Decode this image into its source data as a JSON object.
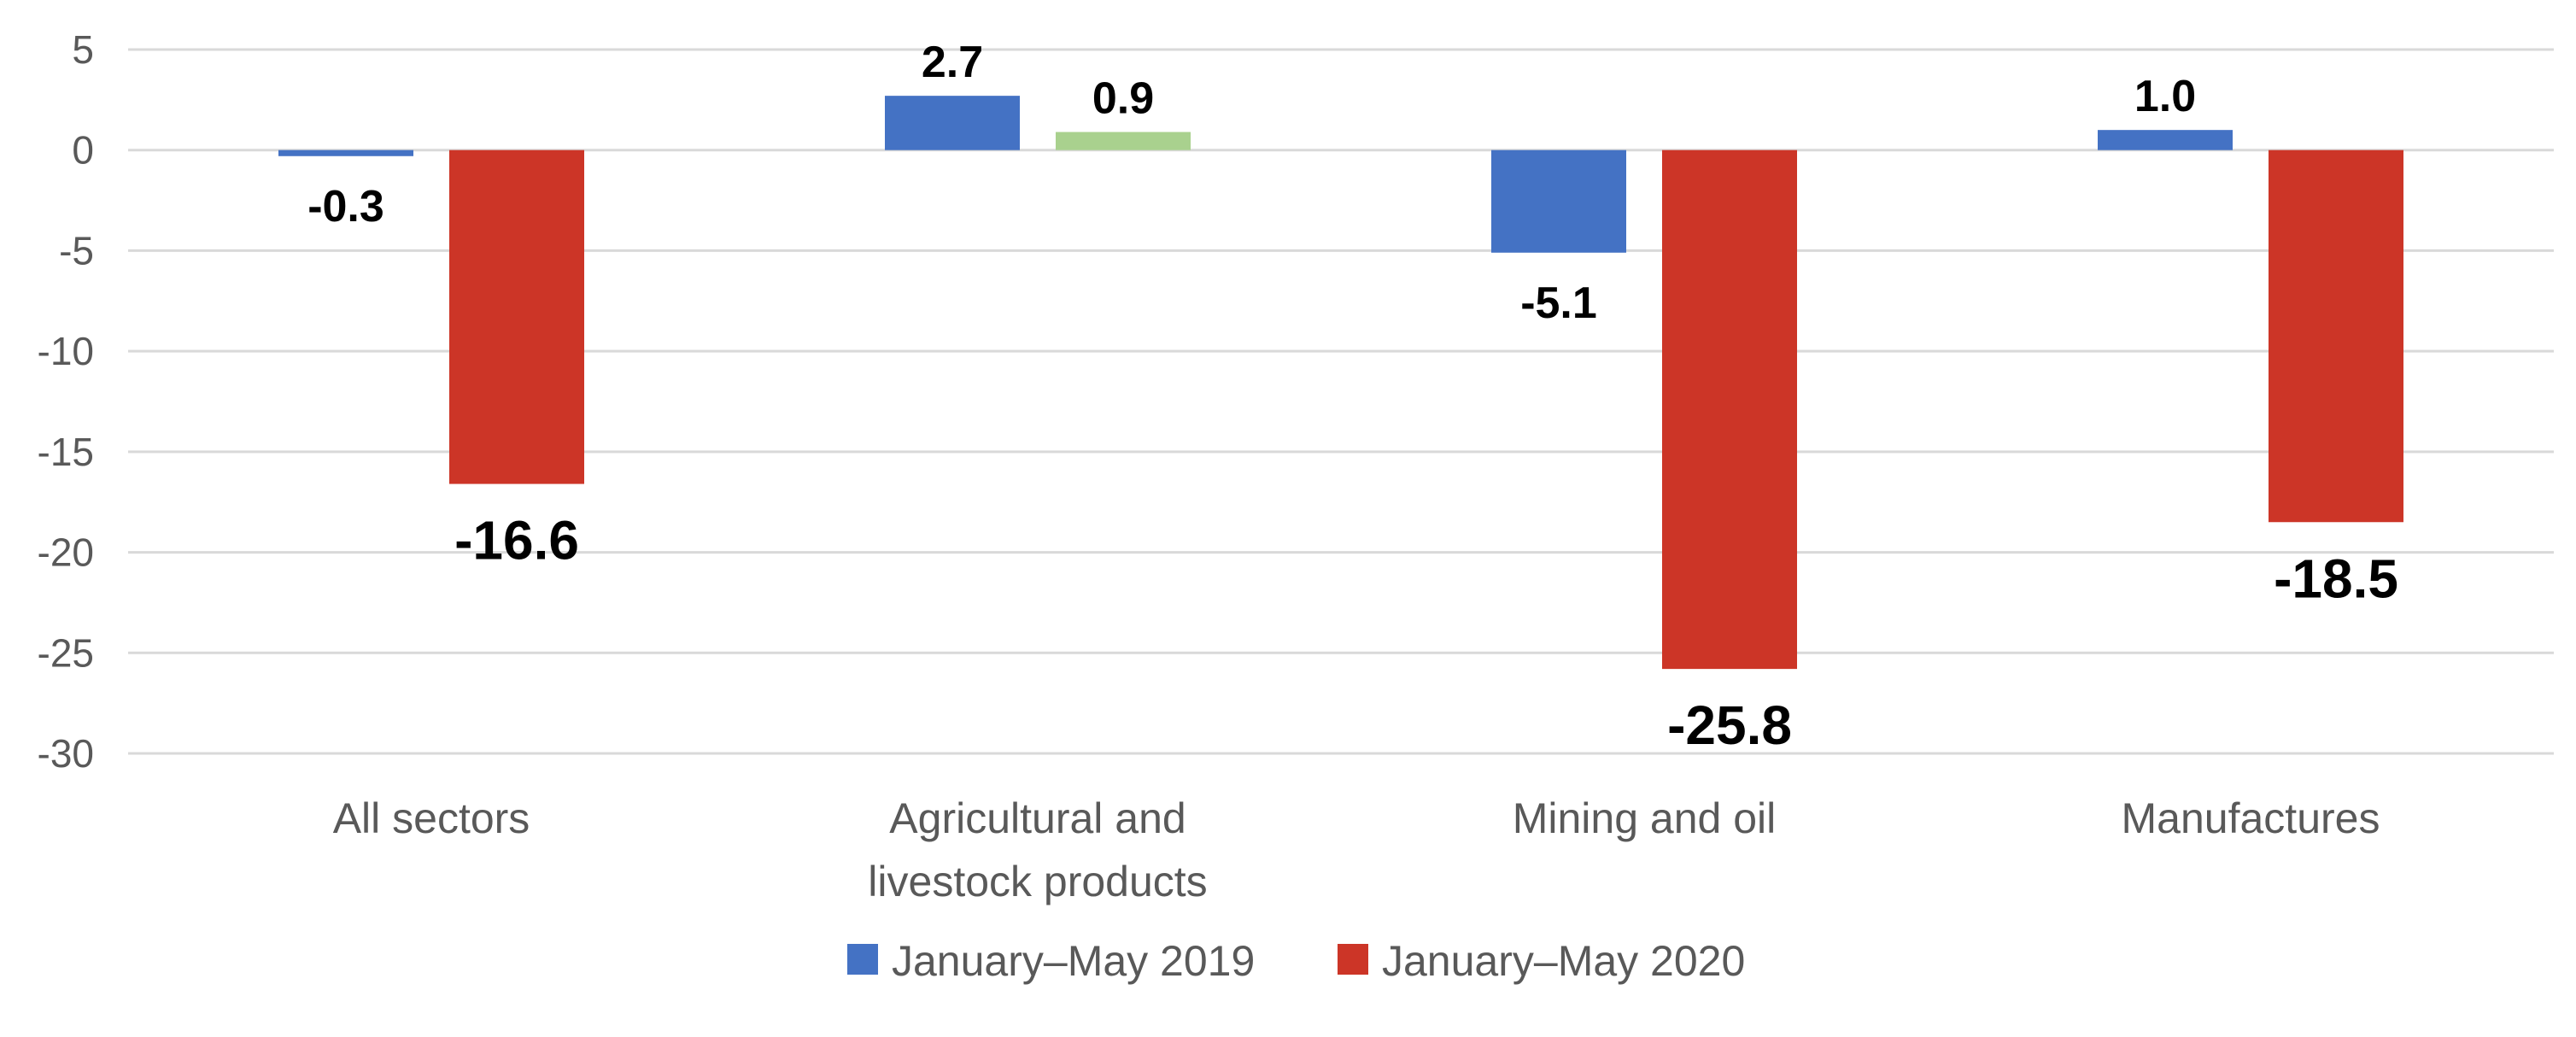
{
  "chart_data": {
    "type": "bar",
    "title": "",
    "xlabel": "",
    "ylabel": "",
    "ylim": [
      -30,
      5
    ],
    "yticks": [
      5,
      0,
      -5,
      -10,
      -15,
      -20,
      -25,
      -30
    ],
    "grid": true,
    "legend_position": "bottom",
    "categories": [
      [
        "All sectors"
      ],
      [
        "Agricultural and",
        "livestock products"
      ],
      [
        "Mining and oil"
      ],
      [
        "Manufactures"
      ]
    ],
    "series": [
      {
        "name": "January–May 2019",
        "color": "#4472C4",
        "values": [
          -0.3,
          2.7,
          -5.1,
          1.0
        ],
        "labels": [
          "-0.3",
          "2.7",
          "-5.1",
          "1.0"
        ]
      },
      {
        "name": "January–May 2020",
        "color": "#CC3527",
        "point_colors": [
          "#CC3527",
          "#A9D18E",
          "#CC3527",
          "#CC3527"
        ],
        "values": [
          -16.6,
          0.9,
          -25.8,
          -18.5
        ],
        "labels": [
          "-16.6",
          "0.9",
          "-25.8",
          "-18.5"
        ]
      }
    ]
  }
}
